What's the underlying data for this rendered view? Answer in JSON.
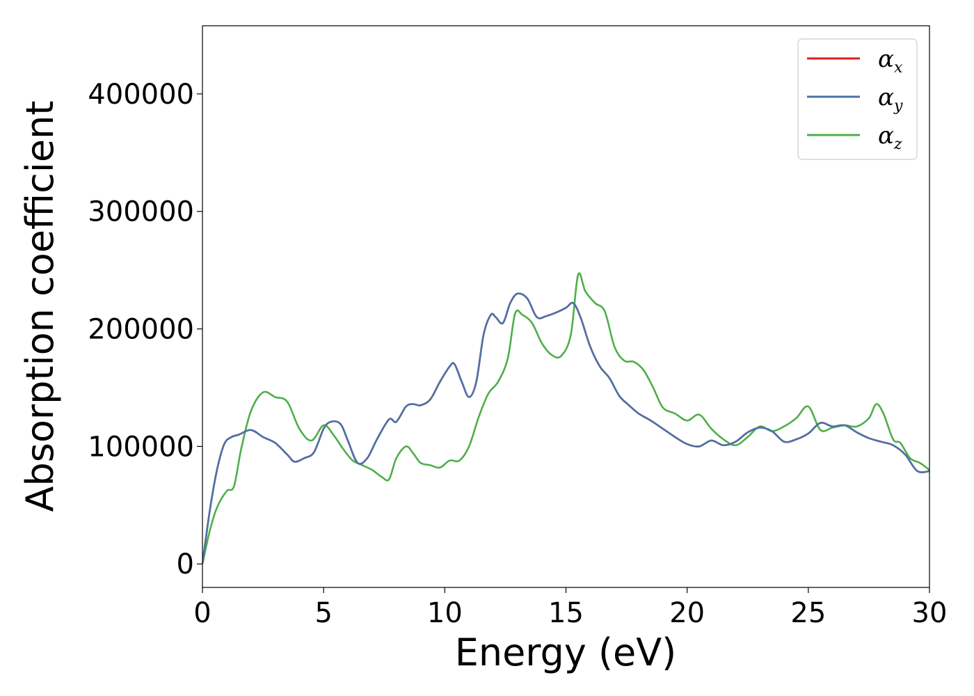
{
  "chart_data": {
    "type": "line",
    "xlabel": "Energy (eV)",
    "ylabel": "Absorption coefficient",
    "xlim": [
      0,
      30
    ],
    "ylim": [
      -20000,
      458000
    ],
    "xticks": [
      0,
      5,
      10,
      15,
      20,
      25,
      30
    ],
    "xtick_labels": [
      "0",
      "5",
      "10",
      "15",
      "20",
      "25",
      "30"
    ],
    "yticks": [
      0,
      100000,
      200000,
      300000,
      400000
    ],
    "ytick_labels": [
      "0",
      "100000",
      "200000",
      "300000",
      "400000"
    ],
    "grid": false,
    "legend_position": "top-right",
    "series": [
      {
        "name": "α",
        "subscript": "x",
        "color": "#e41a1c",
        "x": [
          0,
          0.3,
          0.6,
          0.9,
          1.2,
          1.5,
          2.0,
          2.5,
          3.0,
          3.5,
          3.8,
          4.2,
          4.6,
          5.0,
          5.3,
          5.7,
          6.0,
          6.4,
          6.8,
          7.2,
          7.7,
          8.0,
          8.4,
          8.7,
          9.0,
          9.4,
          9.8,
          10.2,
          10.4,
          10.7,
          11.0,
          11.3,
          11.6,
          11.9,
          12.1,
          12.4,
          12.7,
          13.0,
          13.4,
          13.8,
          14.2,
          14.6,
          15.0,
          15.3,
          15.6,
          16.0,
          16.4,
          16.8,
          17.2,
          17.6,
          18.0,
          18.5,
          19.0,
          19.5,
          20.0,
          20.5,
          21.0,
          21.5,
          22.0,
          22.5,
          23.0,
          23.5,
          24.0,
          24.5,
          25.0,
          25.5,
          26.0,
          26.5,
          27.0,
          27.5,
          28.0,
          28.5,
          29.0,
          29.5,
          30.0
        ],
        "y": [
          0,
          45000,
          80000,
          102000,
          108000,
          110000,
          114000,
          108000,
          103000,
          93000,
          87000,
          90000,
          95000,
          115000,
          121000,
          119000,
          105000,
          86000,
          90000,
          106000,
          123000,
          121000,
          134000,
          136000,
          135000,
          140000,
          155000,
          168000,
          170000,
          155000,
          142000,
          155000,
          195000,
          212000,
          210000,
          205000,
          222000,
          230000,
          226000,
          210000,
          211000,
          214000,
          218000,
          222000,
          210000,
          185000,
          168000,
          158000,
          143000,
          135000,
          128000,
          122000,
          115000,
          108000,
          102000,
          100000,
          105000,
          101000,
          104000,
          112000,
          116000,
          113000,
          104000,
          106000,
          111000,
          120000,
          117000,
          118000,
          112000,
          107000,
          104000,
          101000,
          93000,
          79000,
          79000
        ]
      },
      {
        "name": "α",
        "subscript": "y",
        "color": "#4a72a8",
        "x": [
          0,
          0.3,
          0.6,
          0.9,
          1.2,
          1.5,
          2.0,
          2.5,
          3.0,
          3.5,
          3.8,
          4.2,
          4.6,
          5.0,
          5.3,
          5.7,
          6.0,
          6.4,
          6.8,
          7.2,
          7.7,
          8.0,
          8.4,
          8.7,
          9.0,
          9.4,
          9.8,
          10.2,
          10.4,
          10.7,
          11.0,
          11.3,
          11.6,
          11.9,
          12.1,
          12.4,
          12.7,
          13.0,
          13.4,
          13.8,
          14.2,
          14.6,
          15.0,
          15.3,
          15.6,
          16.0,
          16.4,
          16.8,
          17.2,
          17.6,
          18.0,
          18.5,
          19.0,
          19.5,
          20.0,
          20.5,
          21.0,
          21.5,
          22.0,
          22.5,
          23.0,
          23.5,
          24.0,
          24.5,
          25.0,
          25.5,
          26.0,
          26.5,
          27.0,
          27.5,
          28.0,
          28.5,
          29.0,
          29.5,
          30.0
        ],
        "y": [
          0,
          45000,
          80000,
          102000,
          108000,
          110000,
          114000,
          108000,
          103000,
          93000,
          87000,
          90000,
          95000,
          115000,
          121000,
          119000,
          105000,
          86000,
          90000,
          106000,
          123000,
          121000,
          134000,
          136000,
          135000,
          140000,
          155000,
          168000,
          170000,
          155000,
          142000,
          155000,
          195000,
          212000,
          210000,
          205000,
          222000,
          230000,
          226000,
          210000,
          211000,
          214000,
          218000,
          222000,
          210000,
          185000,
          168000,
          158000,
          143000,
          135000,
          128000,
          122000,
          115000,
          108000,
          102000,
          100000,
          105000,
          101000,
          104000,
          112000,
          116000,
          113000,
          104000,
          106000,
          111000,
          120000,
          117000,
          118000,
          112000,
          107000,
          104000,
          101000,
          93000,
          79000,
          79000
        ]
      },
      {
        "name": "α",
        "subscript": "z",
        "color": "#4daf4a",
        "x": [
          0,
          0.3,
          0.6,
          1.0,
          1.3,
          1.6,
          2.0,
          2.5,
          3.0,
          3.5,
          4.0,
          4.5,
          5.0,
          5.4,
          5.8,
          6.2,
          6.6,
          7.0,
          7.4,
          7.7,
          8.0,
          8.4,
          8.7,
          9.0,
          9.4,
          9.8,
          10.2,
          10.6,
          11.0,
          11.4,
          11.8,
          12.2,
          12.6,
          12.9,
          13.2,
          13.6,
          14.0,
          14.4,
          14.8,
          15.2,
          15.5,
          15.8,
          16.2,
          16.6,
          17.0,
          17.4,
          17.8,
          18.2,
          18.6,
          19.0,
          19.5,
          20.0,
          20.5,
          21.0,
          21.5,
          22.0,
          22.5,
          23.0,
          23.5,
          24.0,
          24.5,
          25.0,
          25.5,
          26.0,
          26.5,
          27.0,
          27.5,
          27.8,
          28.1,
          28.5,
          28.8,
          29.2,
          29.6,
          30.0
        ],
        "y": [
          0,
          28000,
          48000,
          62000,
          66000,
          98000,
          130000,
          146000,
          142000,
          138000,
          115000,
          105000,
          118000,
          110000,
          98000,
          88000,
          84000,
          80000,
          74000,
          72000,
          90000,
          100000,
          94000,
          86000,
          84000,
          82000,
          88000,
          88000,
          100000,
          125000,
          145000,
          155000,
          175000,
          213000,
          212000,
          205000,
          188000,
          178000,
          177000,
          195000,
          246000,
          232000,
          222000,
          215000,
          185000,
          173000,
          172000,
          165000,
          150000,
          133000,
          128000,
          122000,
          127000,
          115000,
          106000,
          101000,
          108000,
          117000,
          113000,
          117000,
          124000,
          134000,
          114000,
          116000,
          118000,
          117000,
          124000,
          136000,
          128000,
          106000,
          103000,
          90000,
          86000,
          80000
        ]
      }
    ]
  }
}
